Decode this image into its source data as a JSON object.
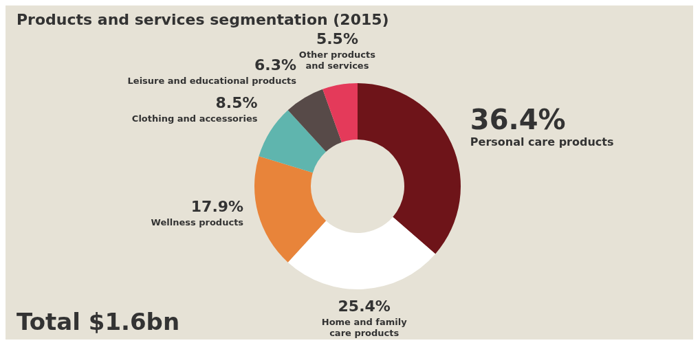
{
  "chart_data": {
    "type": "donut",
    "title": "Products and services segmentation (2015)",
    "categories": [
      "Personal care products",
      "Home and family care products",
      "Wellness products",
      "Clothing and accessories",
      "Leisure and educational products",
      "Other products and services"
    ],
    "values": [
      36.4,
      25.4,
      17.9,
      8.5,
      6.3,
      5.5
    ],
    "value_labels": [
      "36.4%",
      "25.4%",
      "17.9%",
      "8.5%",
      "6.3%",
      "5.5%"
    ],
    "colors": [
      "#6e1419",
      "#ffffff",
      "#e8843a",
      "#5fb5ae",
      "#574a48",
      "#e43a5a"
    ],
    "annotations": [
      "Total $1.6bn"
    ],
    "legend": false
  }
}
